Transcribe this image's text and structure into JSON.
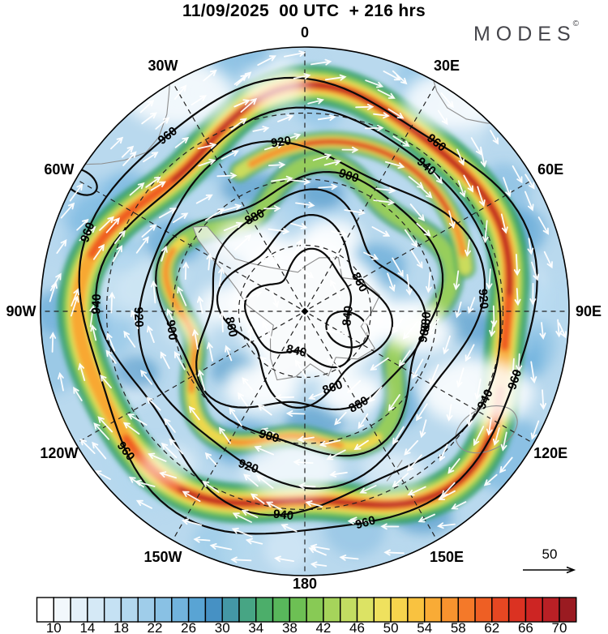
{
  "header": {
    "title": "11/09/2025  00 UTC  + 216 hrs",
    "brand": "MODES",
    "brand_mark": "©"
  },
  "map": {
    "projection_labels": [
      "0",
      "30E",
      "60E",
      "90E",
      "120E",
      "150E",
      "180",
      "150W",
      "120W",
      "90W",
      "60W",
      "30W"
    ],
    "contour_levels": [
      "840",
      "860",
      "880",
      "900",
      "920",
      "940",
      "960"
    ]
  },
  "wind_reference": {
    "label": "50"
  },
  "colorbar": {
    "tick_labels": [
      "10",
      "14",
      "18",
      "22",
      "26",
      "30",
      "34",
      "38",
      "42",
      "46",
      "50",
      "54",
      "58",
      "62",
      "66",
      "70"
    ],
    "cell_colors": [
      "#ffffff",
      "#f2f8fc",
      "#e4f0f9",
      "#d5e9f6",
      "#c5e1f3",
      "#b3d8ef",
      "#9fcdea",
      "#89c1e4",
      "#71b3dd",
      "#59a4d4",
      "#4691c4",
      "#4497a6",
      "#47a584",
      "#4cae6a",
      "#58b75b",
      "#6dc054",
      "#88ca55",
      "#a6d45b",
      "#c3dd62",
      "#dce364",
      "#efe15e",
      "#f7d44d",
      "#f9c240",
      "#f9ab36",
      "#f8932e",
      "#f47929",
      "#ee5f24",
      "#e64722",
      "#db3222",
      "#cd2523",
      "#b92025",
      "#9a1b21"
    ]
  }
}
